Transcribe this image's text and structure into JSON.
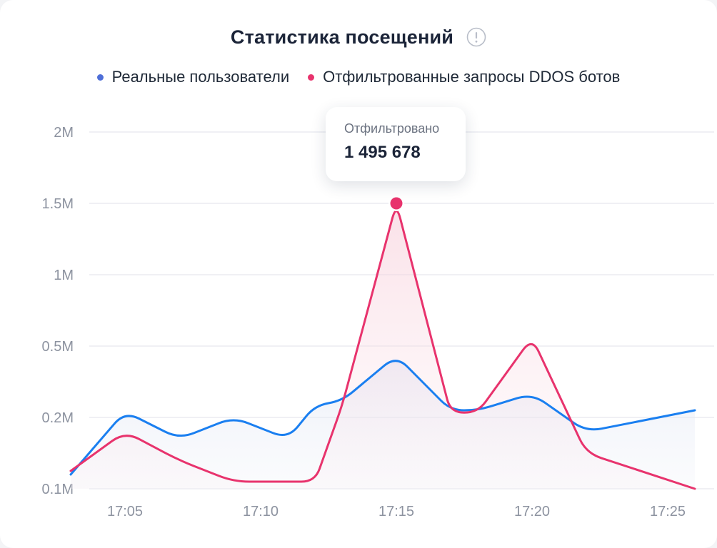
{
  "title": "Статистика посещений",
  "legend": [
    {
      "label": "Реальные пользователи",
      "color": "#4f6fd8"
    },
    {
      "label": "Отфильтрованные запросы DDOS ботов",
      "color": "#e8336d"
    }
  ],
  "tooltip": {
    "label": "Отфильтровано",
    "value": "1 495 678",
    "category": "17:15"
  },
  "chart_data": {
    "type": "line",
    "y_scale": "categorical-ticks",
    "y_ticks": [
      "0.1M",
      "0.2M",
      "0.5M",
      "1M",
      "1.5M",
      "2M"
    ],
    "x_ticks": [
      "17:05",
      "17:10",
      "17:15",
      "17:20",
      "17:25"
    ],
    "ylim": [
      0.1,
      2
    ],
    "grid": true,
    "legend_position": "top-center",
    "x": [
      "17:03",
      "17:05",
      "17:07",
      "17:09",
      "17:11",
      "17:12",
      "17:13",
      "17:15",
      "17:17",
      "17:18",
      "17:20",
      "17:22",
      "17:26"
    ],
    "series": [
      {
        "name": "Реальные пользователи",
        "color": "#1a7ff0",
        "values": [
          0.12,
          0.225,
          0.17,
          0.2,
          0.17,
          0.25,
          0.27,
          0.46,
          0.23,
          0.23,
          0.3,
          0.18,
          0.23
        ]
      },
      {
        "name": "Отфильтрованные запросы DDOS ботов",
        "color": "#e8336d",
        "values": [
          0.125,
          0.18,
          0.14,
          0.11,
          0.11,
          0.11,
          0.25,
          1.5,
          0.22,
          0.22,
          0.56,
          0.15,
          0.1
        ]
      }
    ]
  }
}
